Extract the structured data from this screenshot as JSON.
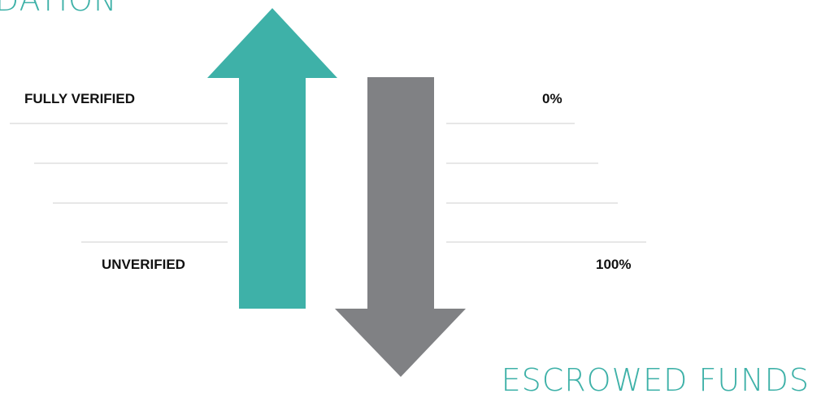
{
  "titles": {
    "top": "DATION",
    "bottom": "ESCROWED FUNDS"
  },
  "left_scale": {
    "top_label": "FULLY VERIFIED",
    "bottom_label": "UNVERIFIED"
  },
  "right_scale": {
    "top_label": "0%",
    "bottom_label": "100%"
  },
  "colors": {
    "up_arrow": "#3eb1a8",
    "down_arrow": "#808184",
    "title": "#3eb1a8",
    "guide_line": "#cfcfcf"
  },
  "icons": {
    "up": "arrow-up-icon",
    "down": "arrow-down-icon"
  }
}
